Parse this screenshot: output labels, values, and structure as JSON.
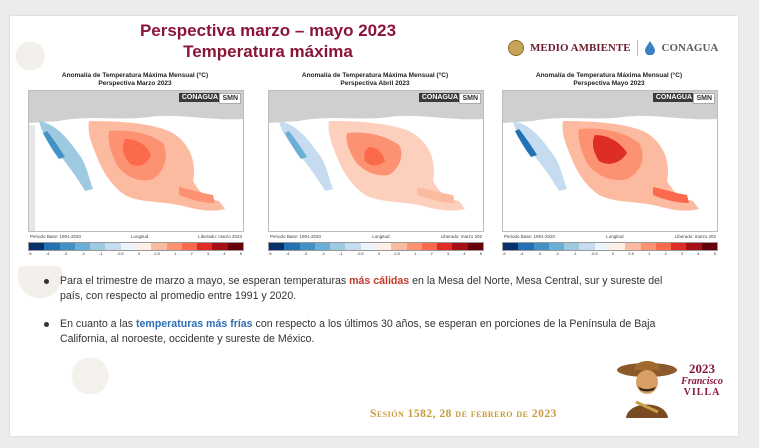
{
  "title": {
    "line1": "Perspectiva marzo – mayo 2023",
    "line2": "Temperatura máxima"
  },
  "logos": {
    "medio_ambiente": "MEDIO AMBIENTE",
    "conagua": "CONAGUA"
  },
  "maps": [
    {
      "title": "Anomalía de Temperatura Máxima Mensual (°C)",
      "subtitle": "Perspectiva Marzo 2023",
      "badge": "CONAGUA",
      "badge2": "SMN",
      "base": "Periodo Base: 1991-2020",
      "release": "Liberado: marzo 2023",
      "xlabel": "Longitud"
    },
    {
      "title": "Anomalía de Temperatura Máxima Mensual (°C)",
      "subtitle": "Perspectiva Abril 2023",
      "badge": "CONAGUA",
      "badge2": "SMN",
      "base": "Periodo Base: 1991-2020",
      "release": "Liberado: marzo 202",
      "xlabel": "Longitud"
    },
    {
      "title": "Anomalía de Temperatura Máxima Mensual (°C)",
      "subtitle": "Perspectiva Mayo 2023",
      "badge": "CONAGUA",
      "badge2": "SMN",
      "base": "Periodo Base: 1991-2020",
      "release": "Liberado: marzo 202",
      "xlabel": "Longitud"
    }
  ],
  "colorbar": {
    "colors": [
      "#08306b",
      "#2171b5",
      "#4292c6",
      "#6baed6",
      "#9ecae1",
      "#c6dbef",
      "#eef4fa",
      "#fdeee6",
      "#fcbba1",
      "#fc9272",
      "#fb6a4a",
      "#de2d26",
      "#a50f15",
      "#67000d"
    ],
    "ticks": [
      "-5",
      "-4",
      "-3",
      "-2",
      "-1",
      "-0.5",
      "0",
      "0.5",
      "1",
      "2",
      "3",
      "4",
      "5"
    ]
  },
  "bullets": [
    {
      "pre": "Para el trimestre de marzo a mayo, se esperan temperaturas ",
      "highlight": "más cálidas",
      "post": " en la Mesa del Norte, Mesa Central, sur y  sureste del país, con respecto al promedio entre 1991 y 2020."
    },
    {
      "pre": "En cuanto a las ",
      "highlight": "temperaturas más frías",
      "post": " con respecto a los últimos 30 años, se esperan en porciones de la Península de Baja California, al noroeste, occidente y sureste de México."
    }
  ],
  "emblem": {
    "year": "2023",
    "first": "Francisco",
    "last": "VILLA"
  },
  "footer": "Sesión 1582, 28 de febrero de 2023"
}
